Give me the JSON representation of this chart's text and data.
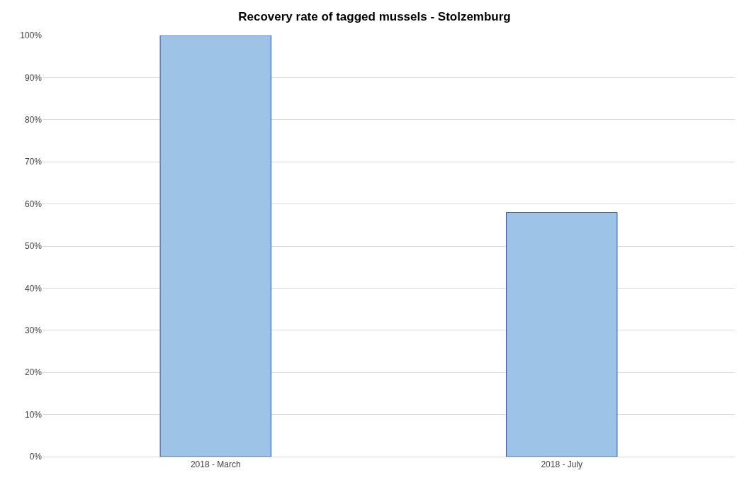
{
  "chart_data": {
    "type": "bar",
    "title": "Recovery rate of tagged mussels - Stolzemburg",
    "categories": [
      "2018 - March",
      "2018 - July"
    ],
    "values": [
      100,
      58
    ],
    "color": "#9dc3e6",
    "ylim": [
      0,
      100
    ],
    "yticks": [
      {
        "value": 0,
        "label": "0%"
      },
      {
        "value": 10,
        "label": "10%"
      },
      {
        "value": 20,
        "label": "20%"
      },
      {
        "value": 30,
        "label": "30%"
      },
      {
        "value": 40,
        "label": "40%"
      },
      {
        "value": 50,
        "label": "50%"
      },
      {
        "value": 60,
        "label": "60%"
      },
      {
        "value": 70,
        "label": "70%"
      },
      {
        "value": 80,
        "label": "80%"
      },
      {
        "value": 90,
        "label": "90%"
      },
      {
        "value": 100,
        "label": "100%"
      }
    ],
    "grid": "y"
  }
}
